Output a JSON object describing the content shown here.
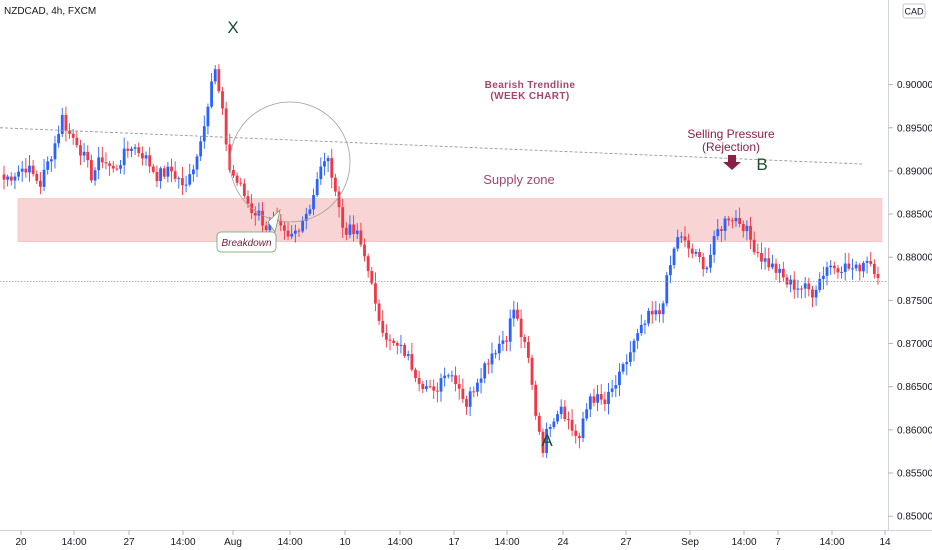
{
  "chart_data": {
    "type": "candlestick",
    "title": "NZDCAD, 4h, FXCM",
    "currency_badge": "CAD",
    "ylim": [
      0.8484,
      0.9098
    ],
    "x_ticks": [
      "20",
      "14:00",
      "27",
      "14:00",
      "Aug",
      "14:00",
      "10",
      "14:00",
      "17",
      "14:00",
      "24",
      "27",
      "Sep",
      "14:00",
      "7",
      "14:00",
      "14"
    ],
    "y_ticks": [
      "0.90000",
      "0.89500",
      "0.89000",
      "0.88500",
      "0.88000",
      "0.87500",
      "0.87000",
      "0.86500",
      "0.86000",
      "0.85500",
      "0.85000"
    ],
    "y_tick_values": [
      0.9,
      0.895,
      0.89,
      0.885,
      0.88,
      0.875,
      0.87,
      0.865,
      0.86,
      0.855,
      0.85
    ],
    "up_color": "#2962ff",
    "down_color": "#f23645",
    "supply_zone": {
      "label": "Supply zone",
      "top": 0.8868,
      "bottom": 0.8818,
      "fill": "#f9d4d4"
    },
    "trendline": {
      "label_line1": "Bearish Trendline",
      "label_line2": "(WEEK CHART)",
      "start": 0.895,
      "end": 0.8908,
      "color": "#999999"
    },
    "reference_level": 0.8772,
    "annotations": {
      "x_label": "X",
      "a_label": "A",
      "b_label": "B",
      "selling_pressure": "Selling Pressure",
      "rejection": "(Rejection)",
      "breakdown": "Breakdown"
    },
    "anchors": [
      [
        0,
        0.889
      ],
      [
        6,
        0.8905
      ],
      [
        10,
        0.8885
      ],
      [
        14,
        0.8932
      ],
      [
        16,
        0.8962
      ],
      [
        18,
        0.8942
      ],
      [
        20,
        0.8935
      ],
      [
        24,
        0.8895
      ],
      [
        27,
        0.8915
      ],
      [
        30,
        0.89
      ],
      [
        35,
        0.893
      ],
      [
        38,
        0.892
      ],
      [
        42,
        0.8895
      ],
      [
        46,
        0.89
      ],
      [
        50,
        0.888
      ],
      [
        54,
        0.8935
      ],
      [
        57,
        0.9005
      ],
      [
        58,
        0.9015
      ],
      [
        60,
        0.8965
      ],
      [
        62,
        0.8902
      ],
      [
        65,
        0.888
      ],
      [
        68,
        0.8855
      ],
      [
        70,
        0.885
      ],
      [
        72,
        0.8835
      ],
      [
        74,
        0.884
      ],
      [
        78,
        0.882
      ],
      [
        80,
        0.883
      ],
      [
        84,
        0.886
      ],
      [
        88,
        0.8915
      ],
      [
        90,
        0.89
      ],
      [
        93,
        0.8835
      ],
      [
        97,
        0.8825
      ],
      [
        100,
        0.879
      ],
      [
        102,
        0.874
      ],
      [
        106,
        0.87
      ],
      [
        110,
        0.869
      ],
      [
        114,
        0.866
      ],
      [
        118,
        0.864
      ],
      [
        121,
        0.867
      ],
      [
        124,
        0.866
      ],
      [
        127,
        0.863
      ],
      [
        130,
        0.866
      ],
      [
        134,
        0.869
      ],
      [
        138,
        0.871
      ],
      [
        140,
        0.874
      ],
      [
        142,
        0.871
      ],
      [
        144,
        0.868
      ],
      [
        146,
        0.862
      ],
      [
        148,
        0.858
      ],
      [
        150,
        0.861
      ],
      [
        153,
        0.863
      ],
      [
        156,
        0.86
      ],
      [
        158,
        0.859
      ],
      [
        161,
        0.864
      ],
      [
        165,
        0.863
      ],
      [
        169,
        0.866
      ],
      [
        173,
        0.87
      ],
      [
        177,
        0.873
      ],
      [
        180,
        0.8735
      ],
      [
        183,
        0.879
      ],
      [
        185,
        0.8825
      ],
      [
        187,
        0.8815
      ],
      [
        190,
        0.88
      ],
      [
        193,
        0.879
      ],
      [
        196,
        0.883
      ],
      [
        199,
        0.8848
      ],
      [
        201,
        0.8845
      ],
      [
        203,
        0.8838
      ],
      [
        205,
        0.882
      ],
      [
        208,
        0.88
      ],
      [
        212,
        0.8785
      ],
      [
        215,
        0.877
      ],
      [
        219,
        0.8765
      ],
      [
        222,
        0.876
      ],
      [
        226,
        0.879
      ],
      [
        230,
        0.879
      ],
      [
        234,
        0.8785
      ],
      [
        237,
        0.88
      ],
      [
        240,
        0.8782
      ]
    ]
  }
}
